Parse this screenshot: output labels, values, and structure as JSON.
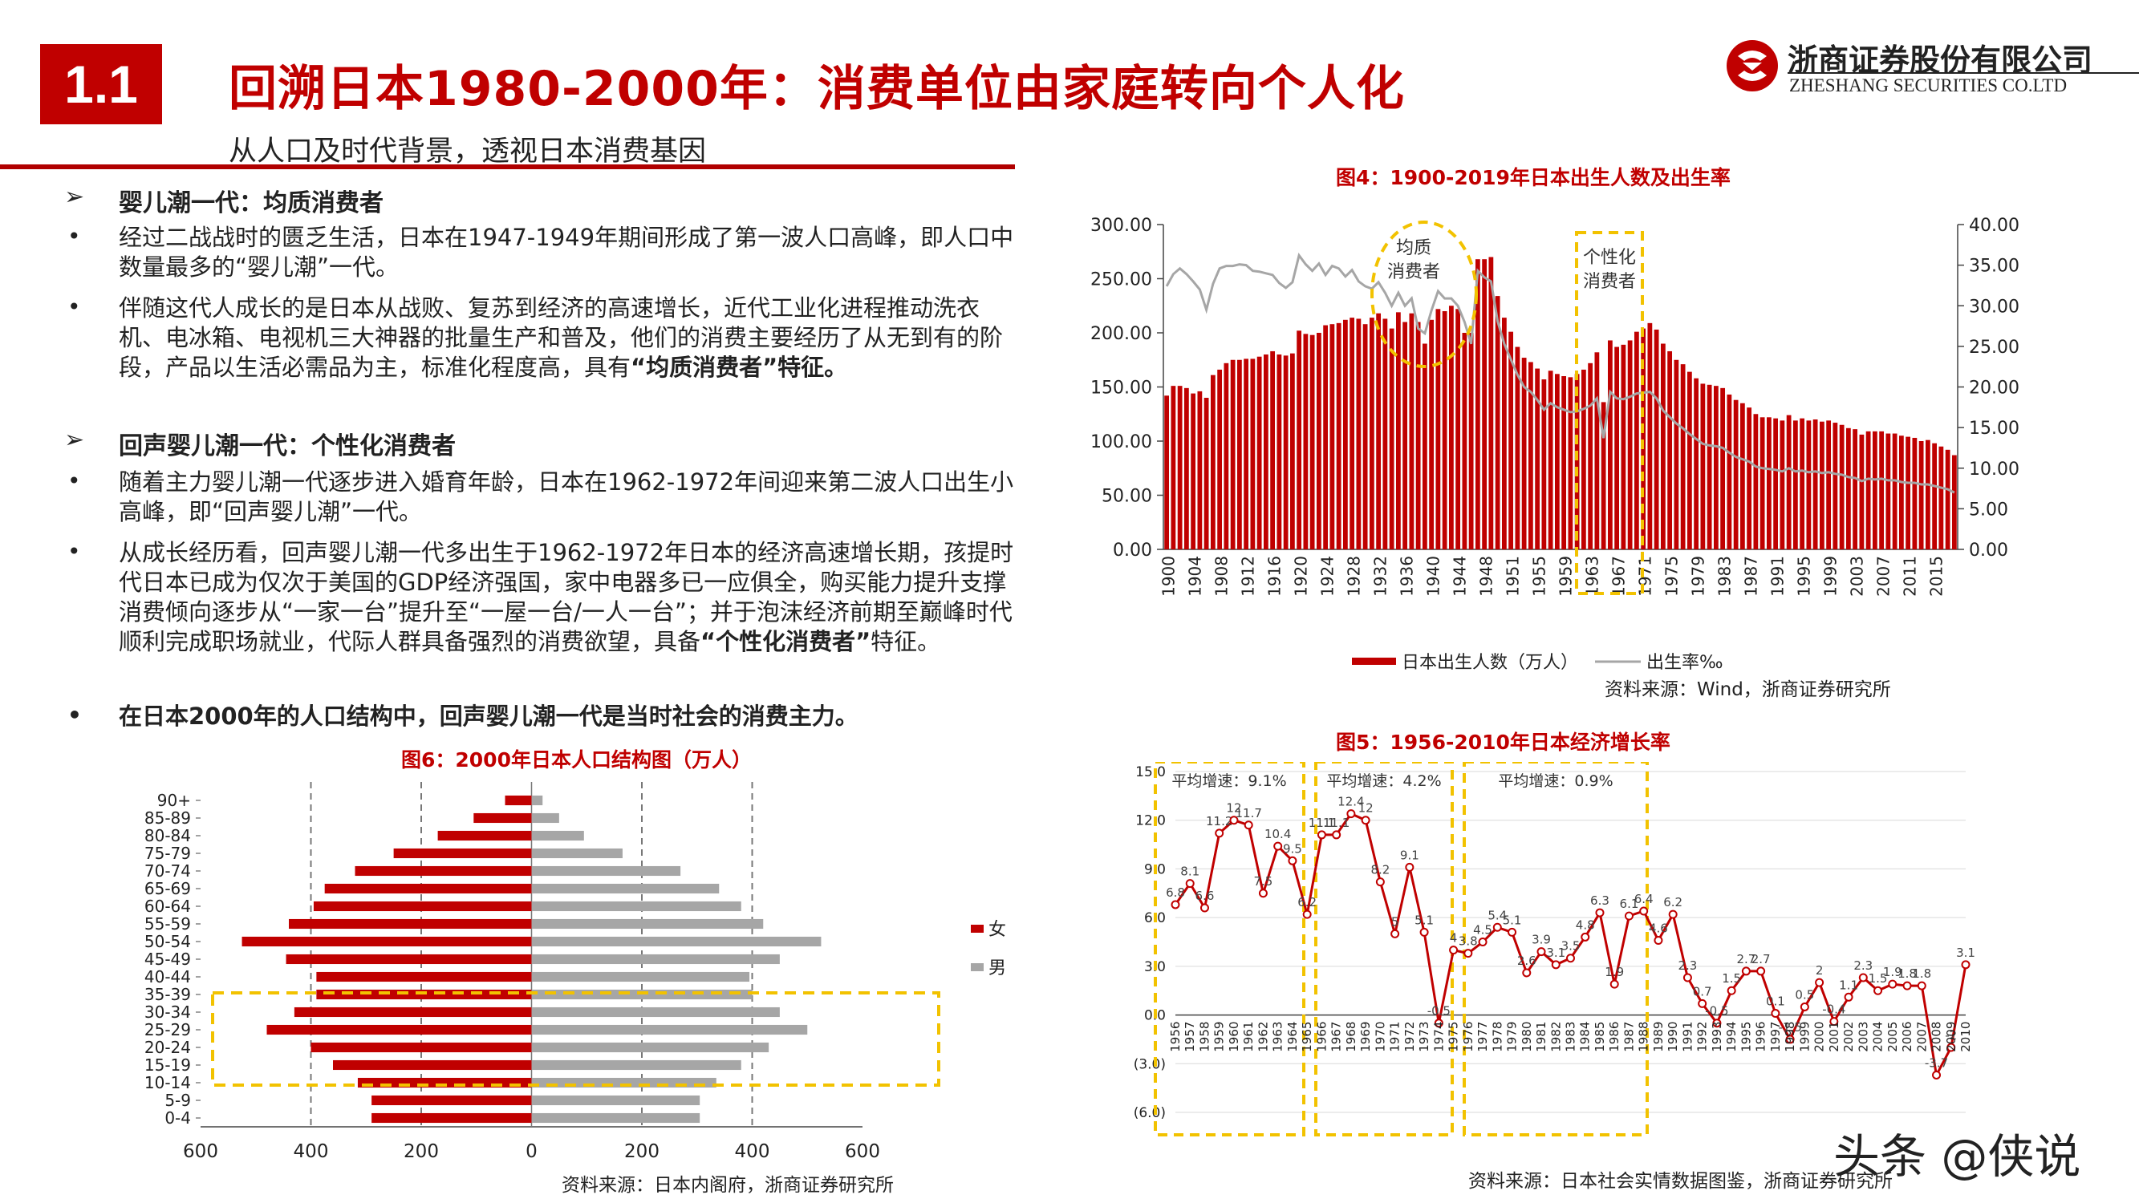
{
  "header": {
    "badge": "1.1",
    "title": "回溯日本1980-2000年：消费单位由家庭转向个人化",
    "subtitle": "从人口及时代背景，透视日本消费基因",
    "logo_cn": "浙商证券股份有限公司",
    "logo_en": "ZHESHANG SECURITIES CO.LTD",
    "colors": {
      "brand_red": "#c00000",
      "highlight_yellow": "#f2c200",
      "gray": "#a6a6a6"
    }
  },
  "text": {
    "sec1": "婴儿潮一代：均质消费者",
    "p1": "经过二战战时的匮乏生活，日本在1947-1949年期间形成了第一波人口高峰，即人口中数量最多的“婴儿潮”一代。",
    "p2_a": "伴随这代人成长的是日本从战败、复苏到经济的高速增长，近代工业化进程推动洗衣机、电冰箱、电视机三大神器的批量生产和普及，他们的消费主要经历了从无到有的阶段，产品以生活必需品为主，标准化程度高，具有",
    "p2_b": "“均质消费者”",
    "p2_c": "特征。",
    "sec2": "回声婴儿潮一代：个性化消费者",
    "p3": "随着主力婴儿潮一代逐步进入婚育年龄，日本在1962-1972年间迎来第二波人口出生小高峰，即“回声婴儿潮”一代。",
    "p4_a": "从成长经历看，回声婴儿潮一代多出生于1962-1972年日本的经济高速增长期，孩提时代日本已成为仅次于美国的GDP经济强国，家中电器多已一应俱全，购买能力提升支撑消费倾向逐步从“一家一台”提升至“一屋一台/一人一台”；并于泡沫经济前期至巅峰时代顺利完成职场就业，代际人群具备强烈的消费欲望，具备",
    "p4_b": "“个性化消费者”",
    "p4_c": "特征。",
    "p5": "在日本2000年的人口结构中，回声婴儿潮一代是当时社会的消费主力。"
  },
  "fig4": {
    "title": "图4：1900-2019年日本出生人数及出生率",
    "legend_births": "日本出生人数（万人）",
    "legend_rate": "出生率‰",
    "annot1_l1": "均质",
    "annot1_l2": "消费者",
    "annot2_l1": "个性化",
    "annot2_l2": "消费者",
    "source": "资料来源：Wind，浙商证券研究所"
  },
  "fig5": {
    "title": "图5：1956-2010年日本经济增长率",
    "avg1": "平均增速：9.1%",
    "avg2": "平均增速：4.2%",
    "avg3": "平均增速：0.9%",
    "source": "资料来源：日本社会实情数据图鉴，浙商证券研究所"
  },
  "fig6": {
    "title": "图6：2000年日本人口结构图（万人）",
    "legend_f": "女",
    "legend_m": "男",
    "source": "资料来源：日本内阁府，浙商证券研究所"
  },
  "watermark": "头条 @侠说",
  "chart_data": [
    {
      "id": "fig4",
      "type": "bar",
      "title": "图4：1900-2019年日本出生人数及出生率",
      "x_tick_labels": [
        "1900",
        "1904",
        "1908",
        "1912",
        "1916",
        "1920",
        "1924",
        "1928",
        "1932",
        "1936",
        "1940",
        "1944",
        "1948",
        "1951",
        "1955",
        "1959",
        "1963",
        "1967",
        "1971",
        "1975",
        "1979",
        "1983",
        "1987",
        "1991",
        "1995",
        "1999",
        "2003",
        "2007",
        "2011",
        "2015"
      ],
      "y_left": {
        "ticks": [
          "0.00",
          "50.00",
          "100.00",
          "150.00",
          "200.00",
          "250.00",
          "300.00"
        ],
        "ylim": [
          0,
          300
        ]
      },
      "y_right": {
        "ticks": [
          "0.00",
          "5.00",
          "10.00",
          "15.00",
          "20.00",
          "25.00",
          "30.00",
          "35.00",
          "40.00"
        ],
        "ylim": [
          0,
          40
        ]
      },
      "series": [
        {
          "name": "日本出生人数（万人）",
          "type": "bar",
          "color": "#c00000",
          "values": [
            142,
            151,
            151,
            149,
            144,
            146,
            140,
            161,
            166,
            172,
            175,
            175,
            176,
            176,
            178,
            180,
            183,
            180,
            179,
            181,
            202,
            199,
            198,
            200,
            207,
            208,
            209,
            212,
            214,
            213,
            208,
            214,
            218,
            213,
            204,
            219,
            210,
            218,
            210,
            190,
            212,
            222,
            220,
            225,
            222,
            200,
            200,
            268,
            268,
            270,
            234,
            214,
            201,
            187,
            177,
            173,
            167,
            157,
            165,
            162,
            160,
            159,
            162,
            166,
            172,
            182,
            136,
            193,
            187,
            189,
            193,
            201,
            204,
            209,
            203,
            190,
            183,
            175,
            171,
            164,
            158,
            153,
            152,
            151,
            149,
            143,
            138,
            135,
            131,
            125,
            122,
            122,
            121,
            119,
            124,
            119,
            121,
            119,
            120,
            118,
            119,
            117,
            115,
            112,
            111,
            106,
            109,
            109,
            109,
            107,
            107,
            105,
            104,
            103,
            100,
            101,
            98,
            95,
            92,
            87
          ]
        },
        {
          "name": "出生率‰",
          "type": "line",
          "axis": "right",
          "color": "#a6a6a6",
          "values": [
            32.4,
            33.9,
            34.6,
            33.9,
            33.0,
            32.0,
            29.5,
            32.7,
            34.6,
            34.9,
            34.9,
            35.1,
            35.0,
            34.3,
            34.2,
            34.0,
            33.8,
            32.8,
            32.2,
            32.9,
            36.2,
            35.1,
            34.3,
            35.2,
            33.8,
            34.9,
            34.6,
            33.6,
            34.4,
            33.0,
            32.4,
            32.1,
            32.9,
            31.6,
            30.0,
            31.6,
            30.0,
            30.9,
            27.2,
            26.6,
            29.4,
            31.8,
            30.9,
            30.9,
            30.0,
            28.0,
            25.3,
            34.3,
            33.5,
            33.0,
            28.1,
            25.3,
            23.4,
            21.5,
            20.0,
            19.4,
            18.4,
            17.2,
            18.0,
            17.5,
            17.2,
            16.9,
            17.0,
            17.3,
            17.7,
            18.6,
            13.7,
            19.4,
            18.6,
            18.5,
            18.8,
            19.2,
            19.3,
            19.4,
            18.6,
            17.1,
            16.3,
            15.5,
            14.9,
            14.2,
            13.6,
            13.0,
            12.8,
            12.7,
            12.5,
            11.9,
            11.4,
            11.1,
            10.8,
            10.2,
            10.0,
            9.9,
            9.8,
            9.6,
            10.0,
            9.6,
            9.7,
            9.5,
            9.6,
            9.4,
            9.5,
            9.3,
            9.2,
            8.9,
            8.8,
            8.4,
            8.7,
            8.6,
            8.7,
            8.5,
            8.5,
            8.3,
            8.2,
            8.2,
            8.0,
            8.0,
            7.8,
            7.6,
            7.4,
            7.0
          ]
        }
      ],
      "legend": "bottom",
      "grid": false
    },
    {
      "id": "fig5",
      "type": "line",
      "title": "图5：1956-2010年日本经济增长率",
      "categories": [
        "1956",
        "1957",
        "1958",
        "1959",
        "1960",
        "1961",
        "1962",
        "1963",
        "1964",
        "1965",
        "1966",
        "1967",
        "1968",
        "1969",
        "1970",
        "1971",
        "1972",
        "1973",
        "1974",
        "1975",
        "1976",
        "1977",
        "1978",
        "1979",
        "1980",
        "1981",
        "1982",
        "1983",
        "1984",
        "1985",
        "1986",
        "1987",
        "1988",
        "1989",
        "1990",
        "1991",
        "1992",
        "1993",
        "1994",
        "1995",
        "1996",
        "1997",
        "1998",
        "1999",
        "2000",
        "2001",
        "2002",
        "2003",
        "2004",
        "2005",
        "2006",
        "2007",
        "2008",
        "2009",
        "2010"
      ],
      "series": [
        {
          "name": "",
          "color": "#c00000",
          "values": [
            6.8,
            8.1,
            6.6,
            11.2,
            12.0,
            11.7,
            7.5,
            10.4,
            9.5,
            6.2,
            11.1,
            11.1,
            12.4,
            12.0,
            8.2,
            5.0,
            9.1,
            5.1,
            -0.5,
            4.0,
            3.8,
            4.5,
            5.4,
            5.1,
            2.6,
            3.9,
            3.1,
            3.5,
            4.8,
            6.3,
            1.9,
            6.1,
            6.4,
            4.6,
            6.2,
            2.3,
            0.7,
            -0.5,
            1.5,
            2.7,
            2.7,
            0.1,
            -1.5,
            0.5,
            2.0,
            -0.4,
            1.1,
            2.3,
            1.5,
            1.9,
            1.8,
            1.8,
            -3.7,
            -2.0,
            3.1
          ]
        }
      ],
      "data_labels": [
        "6.8",
        "8.1",
        "6.6",
        "11.2",
        "12",
        "11.7",
        "7.5",
        "10.4",
        "9.5",
        "6.2",
        "11.1",
        "11.1",
        "12.4",
        "12",
        "8.2",
        "5",
        "9.1",
        "5.1",
        "-0.5",
        "4",
        "3.8",
        "4.5",
        "5.4",
        "5.1",
        "2.6",
        "3.9",
        "3.1",
        "3.5",
        "4.8",
        "6.3",
        "1.9",
        "6.1",
        "6.4",
        "4.6",
        "6.2",
        "2.3",
        "0.7",
        "-0.5",
        "1.5",
        "2.7",
        "2.7",
        "0.1",
        "-1.5",
        "0.5",
        "2",
        "-0.4",
        "1.1",
        "2.3",
        "1.5",
        "1.9",
        "1.8",
        "1.8",
        "-3.7",
        "-2",
        "3.1"
      ],
      "y_ticks": [
        "15.0",
        "12.0",
        "9.0",
        "6.0",
        "3.0",
        "0.0",
        "(3.0)",
        "(6.0)"
      ],
      "ylim": [
        -6,
        15
      ],
      "grid": true
    },
    {
      "id": "fig6",
      "type": "bar",
      "orientation": "horizontal-pyramid",
      "title": "图6：2000年日本人口结构图（万人）",
      "categories": [
        "90+",
        "85-89",
        "80-84",
        "75-79",
        "70-74",
        "65-69",
        "60-64",
        "55-59",
        "50-54",
        "45-49",
        "40-44",
        "35-39",
        "30-34",
        "25-29",
        "20-24",
        "15-19",
        "10-14",
        "5-9",
        "0-4"
      ],
      "series": [
        {
          "name": "女",
          "color": "#c00000",
          "values": [
            48,
            105,
            170,
            250,
            320,
            375,
            395,
            440,
            525,
            445,
            390,
            390,
            430,
            480,
            400,
            360,
            315,
            290,
            290
          ]
        },
        {
          "name": "男",
          "color": "#a6a6a6",
          "values": [
            20,
            50,
            95,
            165,
            270,
            340,
            380,
            420,
            525,
            450,
            395,
            400,
            450,
            500,
            430,
            380,
            335,
            305,
            305
          ]
        }
      ],
      "x_tick_labels": [
        "600",
        "400",
        "200",
        "0",
        "200",
        "400",
        "600"
      ],
      "xlim": [
        -600,
        600
      ],
      "legend": "right"
    }
  ]
}
